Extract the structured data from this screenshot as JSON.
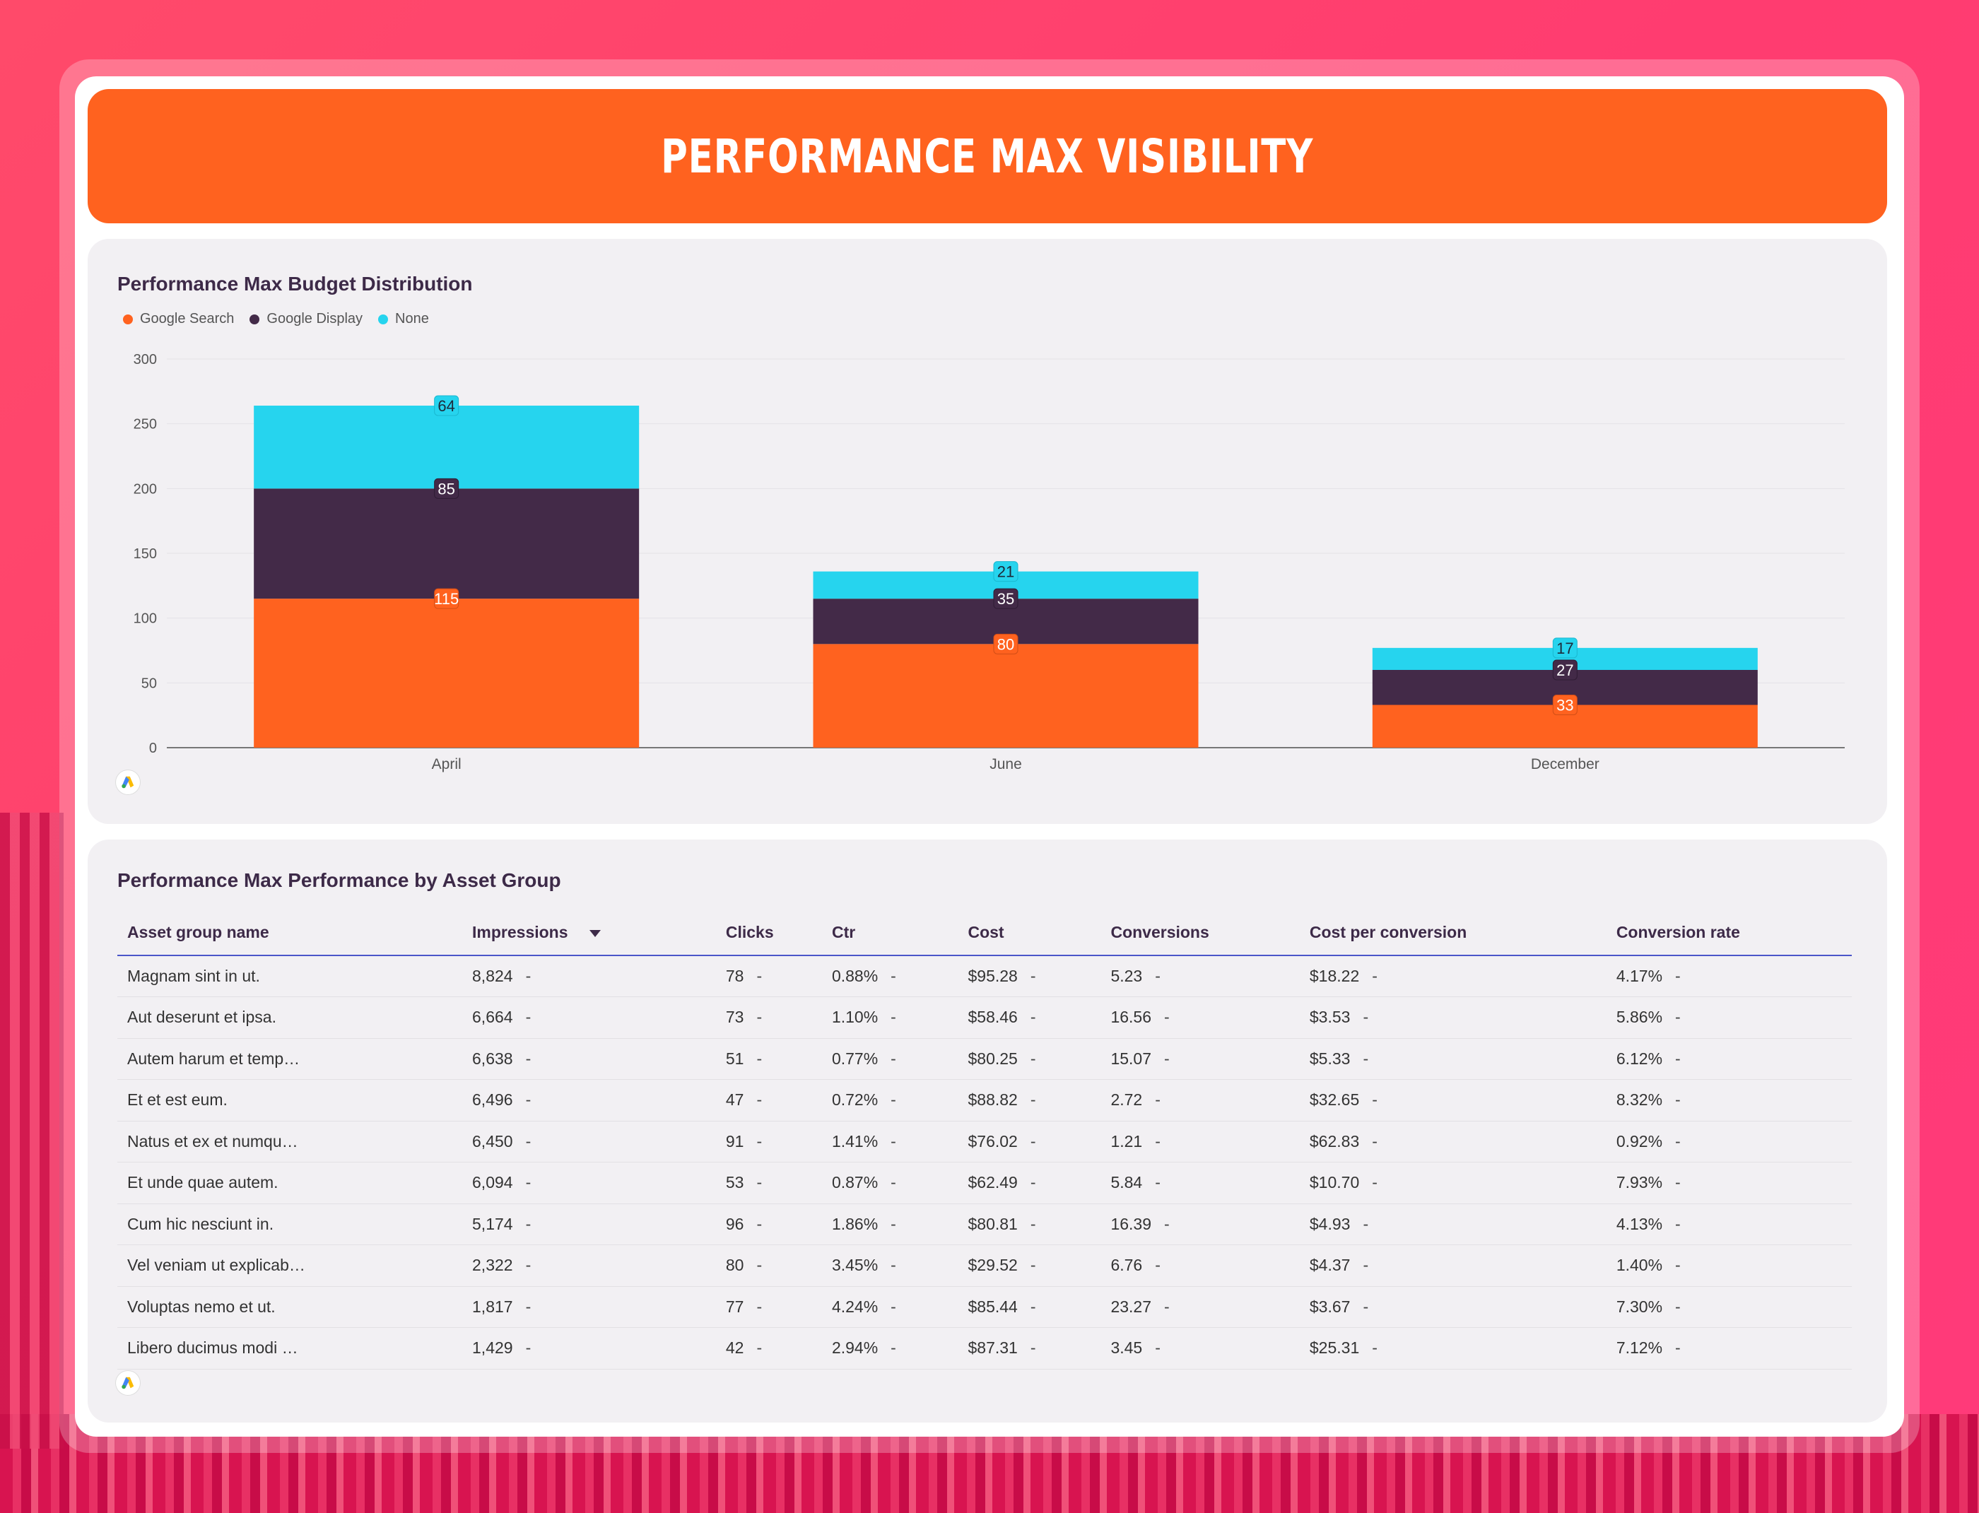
{
  "header": {
    "title": "Performance Max Visibility"
  },
  "budget_chart": {
    "title": "Performance Max Budget Distribution",
    "legend": [
      {
        "name": "Google Search",
        "color": "#ff621f"
      },
      {
        "name": "Google Display",
        "color": "#432a48"
      },
      {
        "name": "None",
        "color": "#26d4ee"
      }
    ],
    "footer_icon": "google-ads-icon"
  },
  "chart_data": {
    "type": "bar",
    "stacked": true,
    "title": "Performance Max Budget Distribution",
    "categories": [
      "April",
      "June",
      "December"
    ],
    "series": [
      {
        "name": "Google Search",
        "values": [
          115,
          80,
          33
        ],
        "color": "#ff621f"
      },
      {
        "name": "Google Display",
        "values": [
          85,
          35,
          27
        ],
        "color": "#432a48"
      },
      {
        "name": "None",
        "values": [
          64,
          21,
          17
        ],
        "color": "#26d4ee"
      }
    ],
    "yticks": [
      "0",
      "50",
      "100",
      "150",
      "200",
      "250",
      "300"
    ],
    "ylim": [
      0,
      300
    ],
    "grid": true,
    "legend_position": "top-left"
  },
  "asset_table": {
    "title": "Performance Max Performance by Asset Group",
    "columns": [
      "Asset group name",
      "Impressions",
      "Clicks",
      "Ctr",
      "Cost",
      "Conversions",
      "Cost per conversion",
      "Conversion rate"
    ],
    "sorted_column_icon": "sort-descending-icon",
    "rows": [
      [
        "Magnam sint in ut.",
        "8,824",
        "78",
        "0.88%",
        "$95.28",
        "5.23",
        "$18.22",
        "4.17%"
      ],
      [
        "Aut deserunt et ipsa.",
        "6,664",
        "73",
        "1.10%",
        "$58.46",
        "16.56",
        "$3.53",
        "5.86%"
      ],
      [
        "Autem harum et temp…",
        "6,638",
        "51",
        "0.77%",
        "$80.25",
        "15.07",
        "$5.33",
        "6.12%"
      ],
      [
        "Et et est eum.",
        "6,496",
        "47",
        "0.72%",
        "$88.82",
        "2.72",
        "$32.65",
        "8.32%"
      ],
      [
        "Natus et ex et numqu…",
        "6,450",
        "91",
        "1.41%",
        "$76.02",
        "1.21",
        "$62.83",
        "0.92%"
      ],
      [
        "Et unde quae autem.",
        "6,094",
        "53",
        "0.87%",
        "$62.49",
        "5.84",
        "$10.70",
        "7.93%"
      ],
      [
        "Cum hic nesciunt in.",
        "5,174",
        "96",
        "1.86%",
        "$80.81",
        "16.39",
        "$4.93",
        "4.13%"
      ],
      [
        "Vel veniam ut explicab…",
        "2,322",
        "80",
        "3.45%",
        "$29.52",
        "6.76",
        "$4.37",
        "1.40%"
      ],
      [
        "Voluptas nemo et ut.",
        "1,817",
        "77",
        "4.24%",
        "$85.44",
        "23.27",
        "$3.67",
        "7.30%"
      ],
      [
        "Libero ducimus modi …",
        "1,429",
        "42",
        "2.94%",
        "$87.31",
        "3.45",
        "$25.31",
        "7.12%"
      ]
    ],
    "delta_placeholder": "-",
    "footer_icon": "google-ads-icon"
  }
}
